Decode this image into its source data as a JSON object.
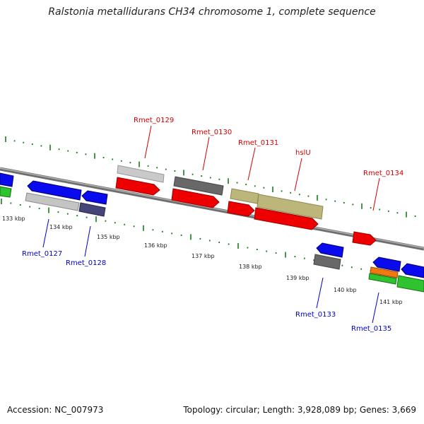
{
  "title": "Ralstonia metallidurans CH34 chromosome 1, complete sequence",
  "footer": {
    "accession": "Accession: NC_007973",
    "summary": "Topology: circular; Length: 3,928,089 bp; Genes: 3,669"
  },
  "ticks": [
    "133 kbp",
    "134 kbp",
    "135 kbp",
    "136 kbp",
    "137 kbp",
    "138 kbp",
    "139 kbp",
    "140 kbp",
    "141 kbp"
  ],
  "labels": {
    "top": [
      "Rmet_0129",
      "Rmet_0130",
      "Rmet_0131",
      "hslU",
      "Rmet_0134"
    ],
    "bottom": [
      "Rmet_0127",
      "Rmet_0128",
      "Rmet_0133",
      "Rmet_0135"
    ]
  },
  "colors": {
    "forward_label": "#d40000",
    "reverse_label": "#0000cc",
    "tick": "#1a7a1a",
    "backbone": "#7a7a7a"
  }
}
